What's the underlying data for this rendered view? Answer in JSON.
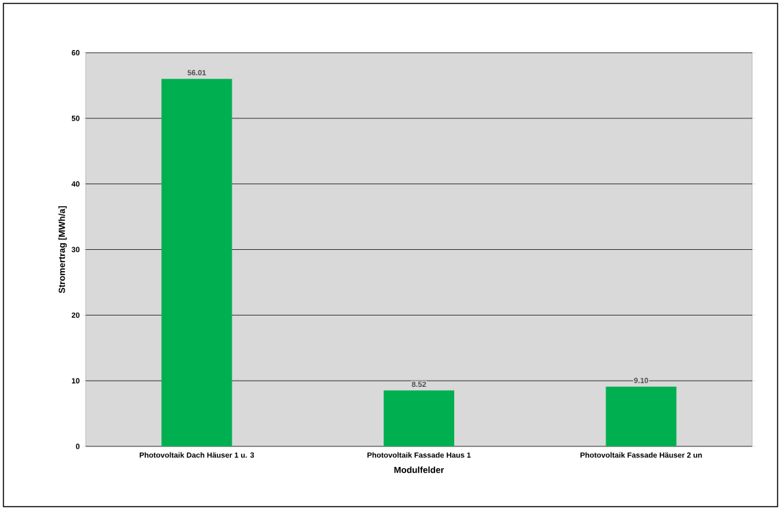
{
  "chart_data": {
    "type": "bar",
    "xlabel": "Modulfelder",
    "ylabel": "Stromertrag [MWh/a]",
    "categories": [
      "Photovoltaik Dach Häuser 1 u. 3",
      "Photovoltaik Fassade Haus 1",
      "Photovoltaik Fassade Häuser 2 un"
    ],
    "values": [
      56.01,
      8.52,
      9.1
    ],
    "value_labels": [
      "56.01",
      "8.52",
      "9.10"
    ],
    "color": "#00b050",
    "ylim": [
      0,
      60
    ],
    "yticks": [
      0,
      10,
      20,
      30,
      40,
      50,
      60
    ],
    "grid": "y"
  }
}
